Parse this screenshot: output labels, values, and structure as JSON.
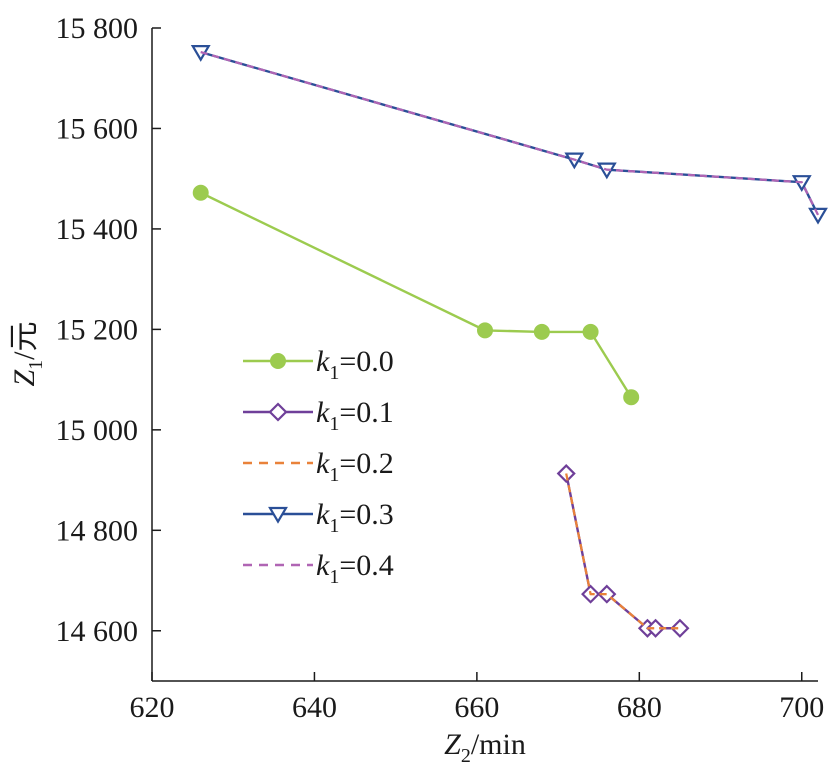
{
  "chart_data": {
    "type": "line",
    "xlabel_main": "Z",
    "xlabel_sub": "2",
    "xlabel_unit": "/min",
    "ylabel_main": "Z",
    "ylabel_sub": "1",
    "ylabel_unit": "/元",
    "xlim": [
      620,
      702
    ],
    "ylim": [
      14500,
      15800
    ],
    "xticks": [
      {
        "value": 620,
        "label": "620"
      },
      {
        "value": 640,
        "label": "640"
      },
      {
        "value": 660,
        "label": "660"
      },
      {
        "value": 680,
        "label": "680"
      },
      {
        "value": 700,
        "label": "700"
      }
    ],
    "yticks": [
      {
        "value": 14600,
        "label": "14 600"
      },
      {
        "value": 14800,
        "label": "14 800"
      },
      {
        "value": 15000,
        "label": "15 000"
      },
      {
        "value": 15200,
        "label": "15 200"
      },
      {
        "value": 15400,
        "label": "15 400"
      },
      {
        "value": 15600,
        "label": "15 600"
      },
      {
        "value": 15800,
        "label": "15 800"
      }
    ],
    "grid": false,
    "legend_position": "left-center",
    "series": [
      {
        "name_var": "k",
        "name_sub": "1",
        "name_val": "=0.0",
        "color": "#9ccb4f",
        "dash": "solid",
        "marker": "circle",
        "x": [
          626,
          661,
          668,
          674,
          679
        ],
        "y": [
          15472,
          15198,
          15195,
          15195,
          15065
        ]
      },
      {
        "name_var": "k",
        "name_sub": "1",
        "name_val": "=0.1",
        "color": "#6f3f99",
        "dash": "solid",
        "marker": "diamond",
        "x": [
          671,
          674,
          676,
          681,
          682,
          685
        ],
        "y": [
          14913,
          14673,
          14673,
          14605,
          14605,
          14605
        ]
      },
      {
        "name_var": "k",
        "name_sub": "1",
        "name_val": "=0.2",
        "color": "#e9823a",
        "dash": "dashed",
        "marker": "none",
        "x": [
          671,
          674,
          676,
          681,
          682,
          685
        ],
        "y": [
          14913,
          14673,
          14673,
          14605,
          14605,
          14605
        ]
      },
      {
        "name_var": "k",
        "name_sub": "1",
        "name_val": "=0.3",
        "color": "#2a4f97",
        "dash": "solid",
        "marker": "triangle-down",
        "x": [
          626,
          672,
          676,
          700,
          702
        ],
        "y": [
          15752,
          15538,
          15518,
          15493,
          15428
        ]
      },
      {
        "name_var": "k",
        "name_sub": "1",
        "name_val": "=0.4",
        "color": "#b065b4",
        "dash": "dashed",
        "marker": "none",
        "x": [
          626,
          672,
          676,
          700,
          702
        ],
        "y": [
          15752,
          15538,
          15518,
          15493,
          15428
        ]
      }
    ]
  }
}
